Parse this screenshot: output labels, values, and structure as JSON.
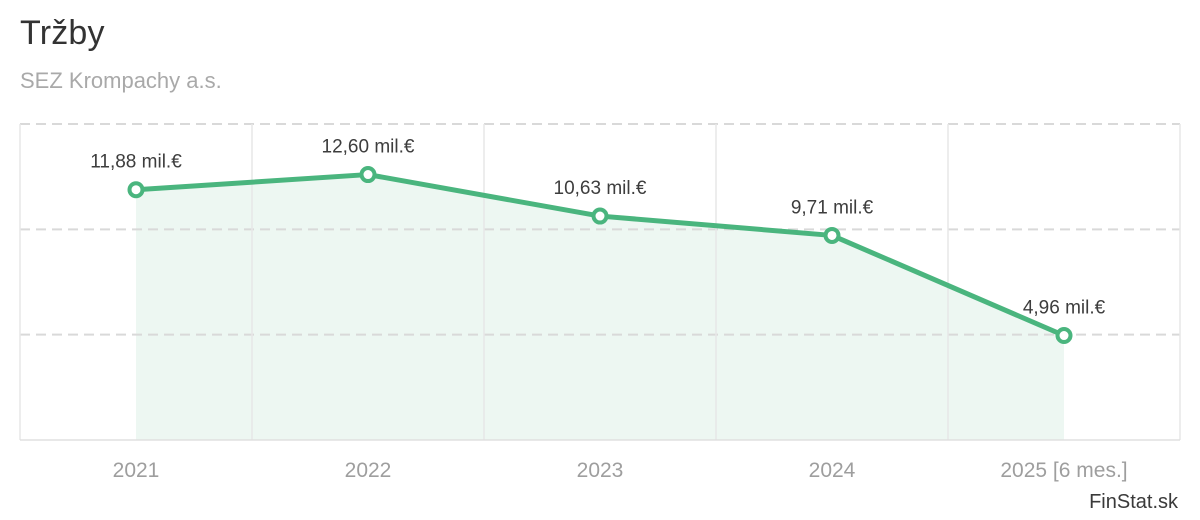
{
  "header": {
    "title": "Tržby",
    "subtitle": "SEZ Krompachy a.s."
  },
  "footer": {
    "brand": "FinStat.sk"
  },
  "chart_data": {
    "type": "line",
    "title": "Tržby",
    "subtitle": "SEZ Krompachy a.s.",
    "categories": [
      "2021",
      "2022",
      "2023",
      "2024",
      "2025 [6 mes.]"
    ],
    "values": [
      11.88,
      12.6,
      10.63,
      9.71,
      4.96
    ],
    "labels": [
      "11,88 mil.€",
      "12,60 mil.€",
      "10,63 mil.€",
      "9,71 mil.€",
      "4,96 mil.€"
    ],
    "unit": "mil.€",
    "xlabel": "",
    "ylabel": "",
    "ylim": [
      0,
      15
    ],
    "grid_step": 5,
    "grid": "horizontal-dashed, vertical-solid band separators",
    "legend": "none",
    "area_fill": true,
    "colors": {
      "line": "#4ab57e",
      "marker_fill": "#ffffff",
      "area": "#edf7f2",
      "grid_dashed": "#d9d9d9",
      "grid_solid": "#e7e7e7",
      "axis_line": "#e0e0e0",
      "data_label": "#3d3d3d",
      "axis_label": "#9e9e9e"
    }
  }
}
